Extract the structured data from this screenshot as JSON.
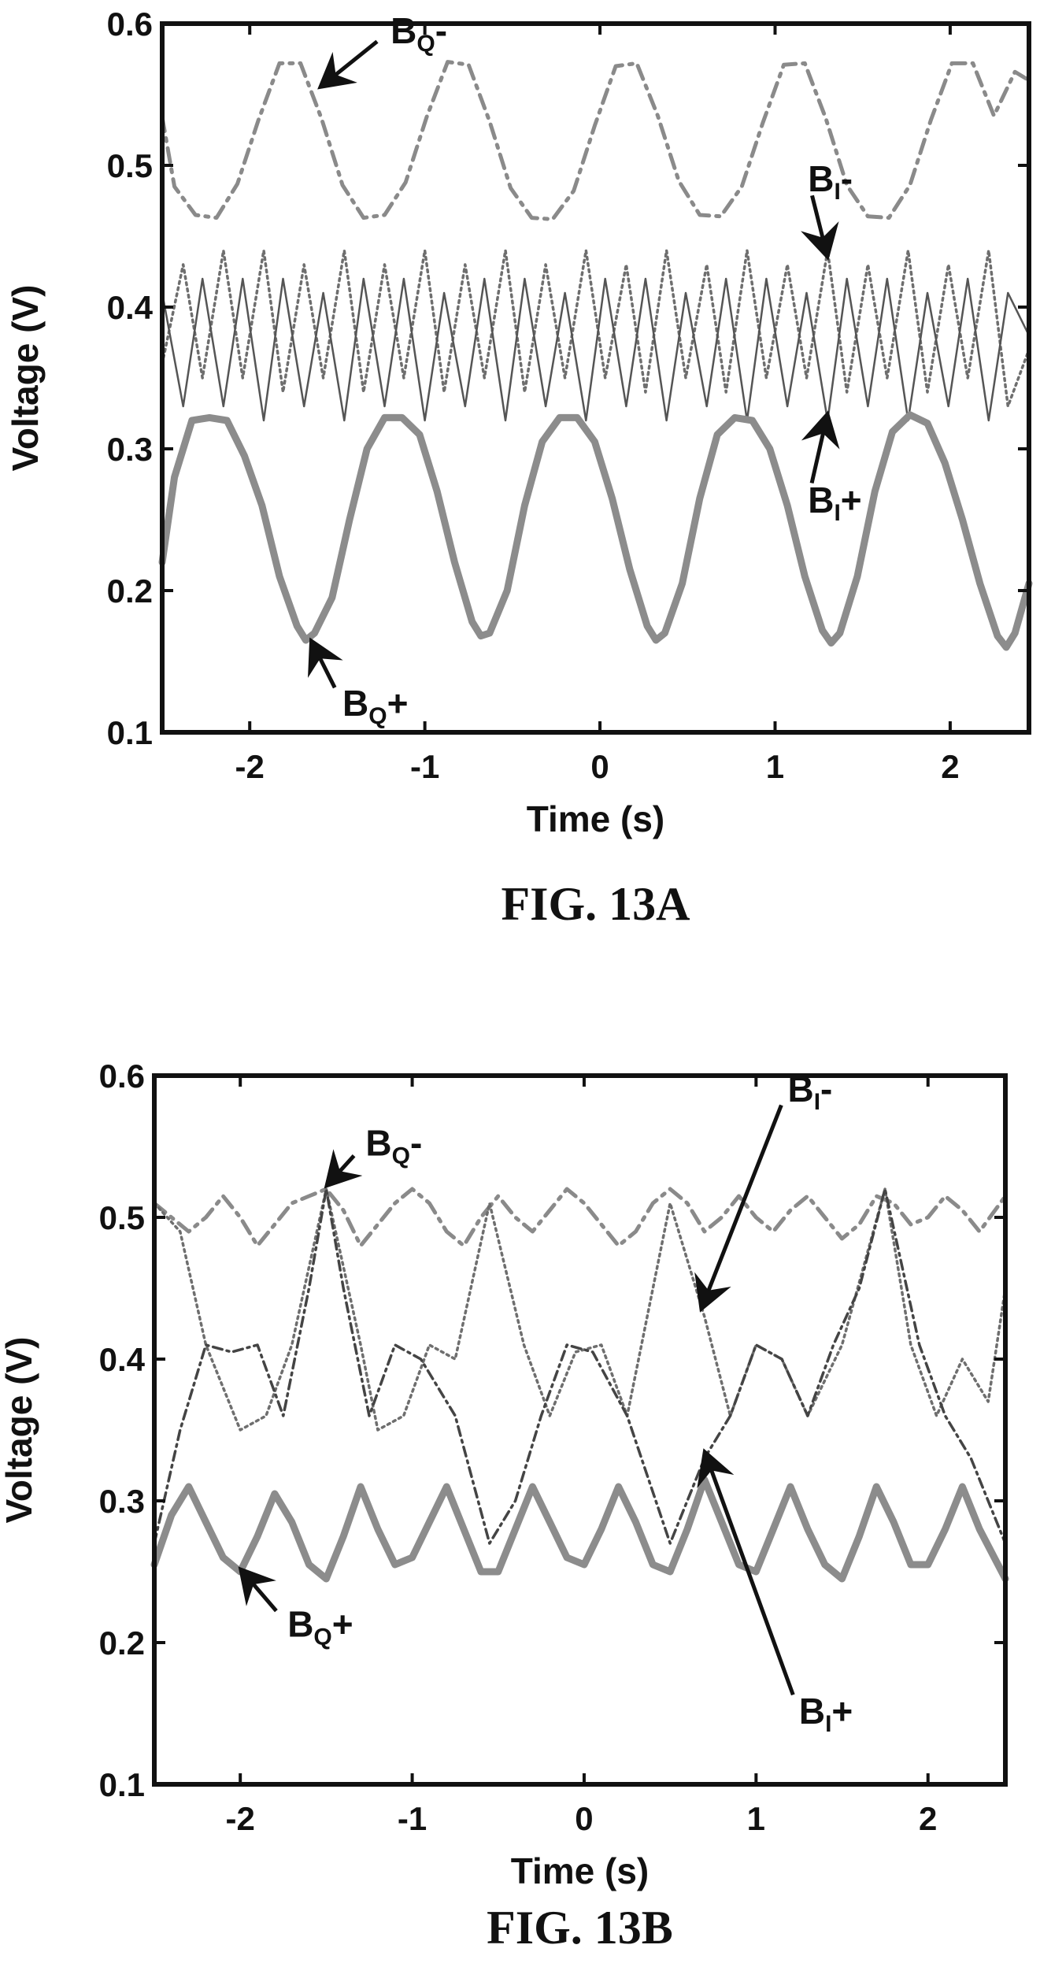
{
  "chart_data": [
    {
      "type": "line",
      "figure_label": "FIG. 13A",
      "xlabel": "Time (s)",
      "ylabel": "Voltage (V)",
      "xlim": [
        -2.5,
        2.45
      ],
      "ylim": [
        0.1,
        0.6
      ],
      "x_ticks": [
        -2,
        -1,
        0,
        1,
        2
      ],
      "x_tick_labels": [
        "-2",
        "-1",
        "0",
        "1",
        "2"
      ],
      "y_ticks": [
        0.1,
        0.2,
        0.3,
        0.4,
        0.5,
        0.6
      ],
      "y_tick_labels": [
        "0.1",
        "0.2",
        "0.3",
        "0.4",
        "0.5",
        "0.6"
      ],
      "grid": false,
      "legend": "none",
      "series": [
        {
          "label_base": "B",
          "label_sub": "Q",
          "label_suffix": "-",
          "style": "dashdot",
          "color": "#8a8a8a",
          "x": [
            -2.5,
            -2.43,
            -2.31,
            -2.19,
            -2.07,
            -1.95,
            -1.83,
            -1.71,
            -1.59,
            -1.47,
            -1.35,
            -1.23,
            -1.11,
            -0.99,
            -0.87,
            -0.75,
            -0.63,
            -0.51,
            -0.39,
            -0.27,
            -0.15,
            -0.03,
            0.09,
            0.21,
            0.33,
            0.45,
            0.57,
            0.69,
            0.81,
            0.93,
            1.05,
            1.17,
            1.29,
            1.41,
            1.53,
            1.65,
            1.77,
            1.89,
            2.01,
            2.13,
            2.25,
            2.37,
            2.45
          ],
          "y": [
            0.534,
            0.485,
            0.465,
            0.463,
            0.487,
            0.532,
            0.572,
            0.572,
            0.533,
            0.486,
            0.463,
            0.465,
            0.488,
            0.534,
            0.573,
            0.571,
            0.531,
            0.484,
            0.463,
            0.462,
            0.482,
            0.528,
            0.57,
            0.572,
            0.535,
            0.489,
            0.465,
            0.464,
            0.485,
            0.53,
            0.571,
            0.572,
            0.533,
            0.486,
            0.464,
            0.463,
            0.486,
            0.532,
            0.572,
            0.572,
            0.535,
            0.566,
            0.56
          ]
        },
        {
          "label_base": "B",
          "label_sub": "I",
          "label_suffix": "-",
          "style": "dotted",
          "color": "#6e6e6e",
          "x": [
            -2.5,
            -2.38,
            -2.27,
            -2.15,
            -2.04,
            -1.92,
            -1.81,
            -1.69,
            -1.58,
            -1.46,
            -1.35,
            -1.23,
            -1.12,
            -1.0,
            -0.89,
            -0.77,
            -0.66,
            -0.54,
            -0.43,
            -0.31,
            -0.2,
            -0.08,
            0.03,
            0.15,
            0.26,
            0.38,
            0.49,
            0.61,
            0.72,
            0.84,
            0.95,
            1.07,
            1.18,
            1.3,
            1.41,
            1.53,
            1.64,
            1.76,
            1.87,
            1.99,
            2.1,
            2.22,
            2.33,
            2.45
          ],
          "y": [
            0.36,
            0.43,
            0.35,
            0.44,
            0.35,
            0.44,
            0.34,
            0.43,
            0.35,
            0.44,
            0.34,
            0.43,
            0.35,
            0.44,
            0.34,
            0.43,
            0.35,
            0.44,
            0.34,
            0.43,
            0.35,
            0.44,
            0.35,
            0.43,
            0.34,
            0.44,
            0.35,
            0.43,
            0.34,
            0.44,
            0.35,
            0.43,
            0.35,
            0.44,
            0.34,
            0.43,
            0.35,
            0.44,
            0.34,
            0.43,
            0.35,
            0.44,
            0.33,
            0.37
          ]
        },
        {
          "label_base": "B",
          "label_sub": "I",
          "label_suffix": "+",
          "style": "solid-thin",
          "color": "#555555",
          "x": [
            -2.5,
            -2.38,
            -2.27,
            -2.15,
            -2.04,
            -1.92,
            -1.81,
            -1.69,
            -1.58,
            -1.46,
            -1.35,
            -1.23,
            -1.12,
            -1.0,
            -0.89,
            -0.77,
            -0.66,
            -0.54,
            -0.43,
            -0.31,
            -0.2,
            -0.08,
            0.03,
            0.15,
            0.26,
            0.38,
            0.49,
            0.61,
            0.72,
            0.84,
            0.95,
            1.07,
            1.18,
            1.3,
            1.41,
            1.53,
            1.64,
            1.76,
            1.87,
            1.99,
            2.1,
            2.22,
            2.33,
            2.45
          ],
          "y": [
            0.41,
            0.33,
            0.42,
            0.33,
            0.42,
            0.32,
            0.42,
            0.33,
            0.41,
            0.32,
            0.42,
            0.33,
            0.42,
            0.32,
            0.41,
            0.33,
            0.42,
            0.32,
            0.42,
            0.33,
            0.41,
            0.32,
            0.42,
            0.33,
            0.42,
            0.32,
            0.41,
            0.33,
            0.42,
            0.32,
            0.42,
            0.33,
            0.41,
            0.32,
            0.42,
            0.33,
            0.42,
            0.32,
            0.41,
            0.33,
            0.42,
            0.32,
            0.41,
            0.38
          ]
        },
        {
          "label_base": "B",
          "label_sub": "Q",
          "label_suffix": "+",
          "style": "solid-thick",
          "color": "#8c8c8c",
          "x": [
            -2.5,
            -2.43,
            -2.33,
            -2.23,
            -2.13,
            -2.03,
            -1.93,
            -1.83,
            -1.73,
            -1.68,
            -1.63,
            -1.53,
            -1.43,
            -1.33,
            -1.23,
            -1.13,
            -1.03,
            -0.93,
            -0.83,
            -0.73,
            -0.68,
            -0.63,
            -0.53,
            -0.43,
            -0.33,
            -0.23,
            -0.13,
            -0.03,
            0.07,
            0.17,
            0.27,
            0.32,
            0.37,
            0.47,
            0.57,
            0.67,
            0.77,
            0.87,
            0.97,
            1.07,
            1.17,
            1.27,
            1.32,
            1.37,
            1.47,
            1.57,
            1.67,
            1.77,
            1.87,
            1.97,
            2.07,
            2.17,
            2.27,
            2.32,
            2.37,
            2.45
          ],
          "y": [
            0.22,
            0.28,
            0.32,
            0.322,
            0.32,
            0.295,
            0.26,
            0.21,
            0.175,
            0.165,
            0.17,
            0.195,
            0.25,
            0.3,
            0.322,
            0.322,
            0.31,
            0.27,
            0.22,
            0.178,
            0.168,
            0.17,
            0.2,
            0.26,
            0.305,
            0.322,
            0.322,
            0.305,
            0.265,
            0.215,
            0.175,
            0.165,
            0.17,
            0.205,
            0.265,
            0.31,
            0.322,
            0.32,
            0.3,
            0.26,
            0.21,
            0.172,
            0.163,
            0.17,
            0.21,
            0.27,
            0.312,
            0.324,
            0.318,
            0.29,
            0.25,
            0.205,
            0.168,
            0.16,
            0.17,
            0.205
          ]
        }
      ],
      "annotations": [
        {
          "base": "B",
          "sub": "Q",
          "suffix": "-",
          "arrow_at": {
            "x": -1.6,
            "y": 0.555
          }
        },
        {
          "base": "B",
          "sub": "I",
          "suffix": "-",
          "arrow_at": {
            "x": 1.3,
            "y": 0.435
          }
        },
        {
          "base": "B",
          "sub": "I",
          "suffix": "+",
          "arrow_at": {
            "x": 1.3,
            "y": 0.325
          }
        },
        {
          "base": "B",
          "sub": "Q",
          "suffix": "+",
          "arrow_at": {
            "x": -1.65,
            "y": 0.165
          }
        }
      ]
    },
    {
      "type": "line",
      "figure_label": "FIG. 13B",
      "xlabel": "Time (s)",
      "ylabel": "Voltage (V)",
      "xlim": [
        -2.5,
        2.45
      ],
      "ylim": [
        0.1,
        0.6
      ],
      "x_ticks": [
        -2,
        -1,
        0,
        1,
        2
      ],
      "x_tick_labels": [
        "-2",
        "-1",
        "0",
        "1",
        "2"
      ],
      "y_ticks": [
        0.1,
        0.2,
        0.3,
        0.4,
        0.5,
        0.6
      ],
      "y_tick_labels": [
        "0.1",
        "0.2",
        "0.3",
        "0.4",
        "0.5",
        "0.6"
      ],
      "grid": false,
      "legend": "none",
      "series": [
        {
          "label_base": "B",
          "label_sub": "Q",
          "label_suffix": "-",
          "style": "dashdot",
          "color": "#8a8a8a",
          "x": [
            -2.5,
            -2.4,
            -2.3,
            -2.2,
            -2.1,
            -2.0,
            -1.9,
            -1.8,
            -1.7,
            -1.6,
            -1.5,
            -1.4,
            -1.3,
            -1.2,
            -1.1,
            -1.0,
            -0.9,
            -0.8,
            -0.7,
            -0.6,
            -0.5,
            -0.4,
            -0.3,
            -0.2,
            -0.1,
            0.0,
            0.1,
            0.2,
            0.3,
            0.4,
            0.5,
            0.6,
            0.7,
            0.8,
            0.9,
            1.0,
            1.1,
            1.2,
            1.3,
            1.4,
            1.5,
            1.6,
            1.7,
            1.8,
            1.9,
            2.0,
            2.1,
            2.2,
            2.3,
            2.45
          ],
          "y": [
            0.51,
            0.5,
            0.49,
            0.5,
            0.515,
            0.5,
            0.48,
            0.495,
            0.51,
            0.515,
            0.52,
            0.505,
            0.48,
            0.495,
            0.51,
            0.52,
            0.51,
            0.49,
            0.48,
            0.5,
            0.515,
            0.5,
            0.49,
            0.505,
            0.52,
            0.51,
            0.495,
            0.48,
            0.49,
            0.51,
            0.52,
            0.51,
            0.49,
            0.5,
            0.515,
            0.5,
            0.49,
            0.505,
            0.515,
            0.5,
            0.485,
            0.495,
            0.515,
            0.51,
            0.495,
            0.5,
            0.515,
            0.505,
            0.49,
            0.515
          ]
        },
        {
          "label_base": "B",
          "label_sub": "I",
          "label_suffix": "-",
          "style": "dotted",
          "color": "#6e6e6e",
          "x": [
            -2.5,
            -2.35,
            -2.2,
            -2.0,
            -1.85,
            -1.7,
            -1.5,
            -1.3,
            -1.2,
            -1.05,
            -0.9,
            -0.75,
            -0.55,
            -0.35,
            -0.2,
            -0.05,
            0.1,
            0.25,
            0.5,
            0.7,
            0.85,
            1.0,
            1.15,
            1.3,
            1.5,
            1.75,
            1.9,
            2.05,
            2.2,
            2.35,
            2.45
          ],
          "y": [
            0.51,
            0.49,
            0.41,
            0.35,
            0.36,
            0.41,
            0.52,
            0.41,
            0.35,
            0.36,
            0.41,
            0.4,
            0.51,
            0.41,
            0.36,
            0.405,
            0.41,
            0.36,
            0.51,
            0.43,
            0.36,
            0.41,
            0.4,
            0.36,
            0.41,
            0.52,
            0.41,
            0.36,
            0.4,
            0.37,
            0.45
          ]
        },
        {
          "label_base": "B",
          "label_sub": "I",
          "label_suffix": "+",
          "style": "dashdot-dense",
          "color": "#444444",
          "x": [
            -2.5,
            -2.35,
            -2.2,
            -2.05,
            -1.9,
            -1.75,
            -1.6,
            -1.5,
            -1.4,
            -1.25,
            -1.1,
            -0.95,
            -0.75,
            -0.55,
            -0.4,
            -0.25,
            -0.1,
            0.05,
            0.25,
            0.5,
            0.7,
            0.85,
            1.0,
            1.15,
            1.3,
            1.45,
            1.6,
            1.75,
            1.95,
            2.1,
            2.25,
            2.45
          ],
          "y": [
            0.27,
            0.35,
            0.41,
            0.405,
            0.41,
            0.36,
            0.45,
            0.52,
            0.45,
            0.36,
            0.41,
            0.4,
            0.36,
            0.27,
            0.3,
            0.36,
            0.41,
            0.405,
            0.36,
            0.27,
            0.33,
            0.36,
            0.41,
            0.4,
            0.36,
            0.41,
            0.45,
            0.52,
            0.41,
            0.36,
            0.33,
            0.27
          ]
        },
        {
          "label_base": "B",
          "label_sub": "Q",
          "label_suffix": "+",
          "style": "solid-thick",
          "color": "#8c8c8c",
          "x": [
            -2.5,
            -2.4,
            -2.3,
            -2.2,
            -2.1,
            -2.0,
            -1.9,
            -1.8,
            -1.7,
            -1.6,
            -1.5,
            -1.4,
            -1.3,
            -1.2,
            -1.1,
            -1.0,
            -0.9,
            -0.8,
            -0.7,
            -0.6,
            -0.5,
            -0.4,
            -0.3,
            -0.2,
            -0.1,
            0.0,
            0.1,
            0.2,
            0.3,
            0.4,
            0.5,
            0.6,
            0.7,
            0.8,
            0.9,
            1.0,
            1.1,
            1.2,
            1.3,
            1.4,
            1.5,
            1.6,
            1.7,
            1.8,
            1.9,
            2.0,
            2.1,
            2.2,
            2.3,
            2.45
          ],
          "y": [
            0.255,
            0.29,
            0.31,
            0.285,
            0.26,
            0.25,
            0.275,
            0.305,
            0.285,
            0.255,
            0.245,
            0.275,
            0.31,
            0.28,
            0.255,
            0.26,
            0.285,
            0.31,
            0.28,
            0.25,
            0.25,
            0.28,
            0.31,
            0.285,
            0.26,
            0.255,
            0.28,
            0.31,
            0.285,
            0.255,
            0.25,
            0.28,
            0.315,
            0.285,
            0.255,
            0.25,
            0.28,
            0.31,
            0.28,
            0.255,
            0.245,
            0.275,
            0.31,
            0.285,
            0.255,
            0.255,
            0.28,
            0.31,
            0.28,
            0.245
          ]
        }
      ],
      "annotations": [
        {
          "base": "B",
          "sub": "Q",
          "suffix": "-",
          "arrow_at": {
            "x": -1.5,
            "y": 0.522
          }
        },
        {
          "base": "B",
          "sub": "I",
          "suffix": "-",
          "arrow_at": {
            "x": 0.68,
            "y": 0.435
          }
        },
        {
          "base": "B",
          "sub": "I",
          "suffix": "+",
          "arrow_at": {
            "x": 0.7,
            "y": 0.335
          }
        },
        {
          "base": "B",
          "sub": "Q",
          "suffix": "+",
          "arrow_at": {
            "x": -2.0,
            "y": 0.252
          }
        }
      ]
    }
  ]
}
